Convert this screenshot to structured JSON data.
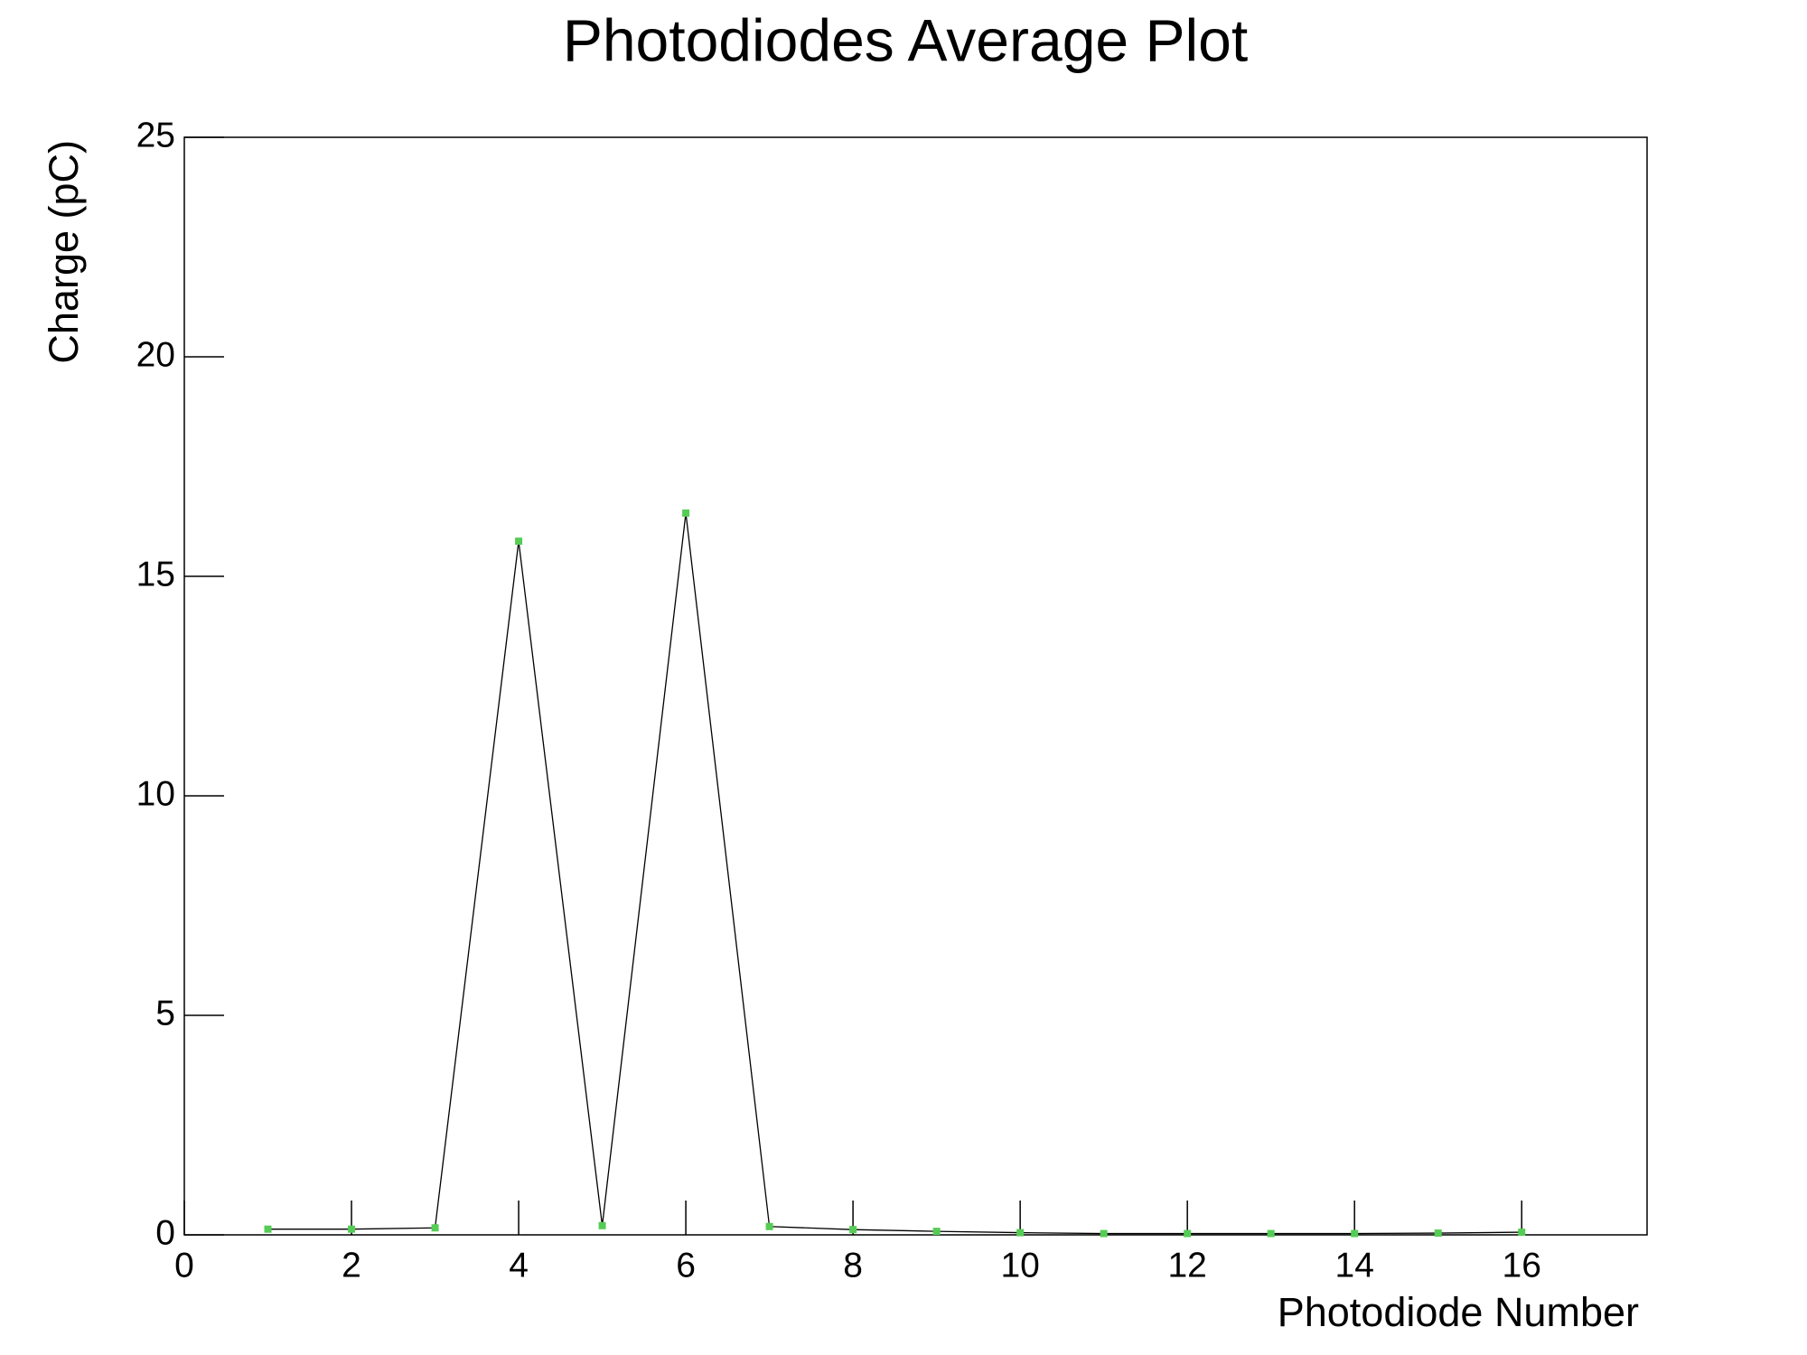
{
  "chart_data": {
    "type": "line",
    "title": "Photodiodes Average Plot",
    "x_label": "Photodiode Number",
    "y_label": "Charge (pC)",
    "x": [
      1,
      2,
      3,
      4,
      5,
      6,
      7,
      8,
      9,
      10,
      11,
      12,
      13,
      14,
      15,
      16
    ],
    "series": [
      {
        "color": "#000000",
        "marker_color": "#55cc55",
        "values": [
          0.13,
          0.13,
          0.16,
          15.8,
          0.21,
          16.44,
          0.19,
          0.12,
          0.08,
          0.05,
          0.03,
          0.03,
          0.03,
          0.03,
          0.04,
          0.06
        ]
      }
    ],
    "xlim": [
      0,
      17.5
    ],
    "xticks": [
      0,
      2,
      4,
      6,
      8,
      10,
      12,
      14,
      16
    ],
    "ylim": [
      0,
      25
    ],
    "yticks": [
      0,
      5,
      10,
      15,
      20,
      25
    ],
    "grid": false
  }
}
